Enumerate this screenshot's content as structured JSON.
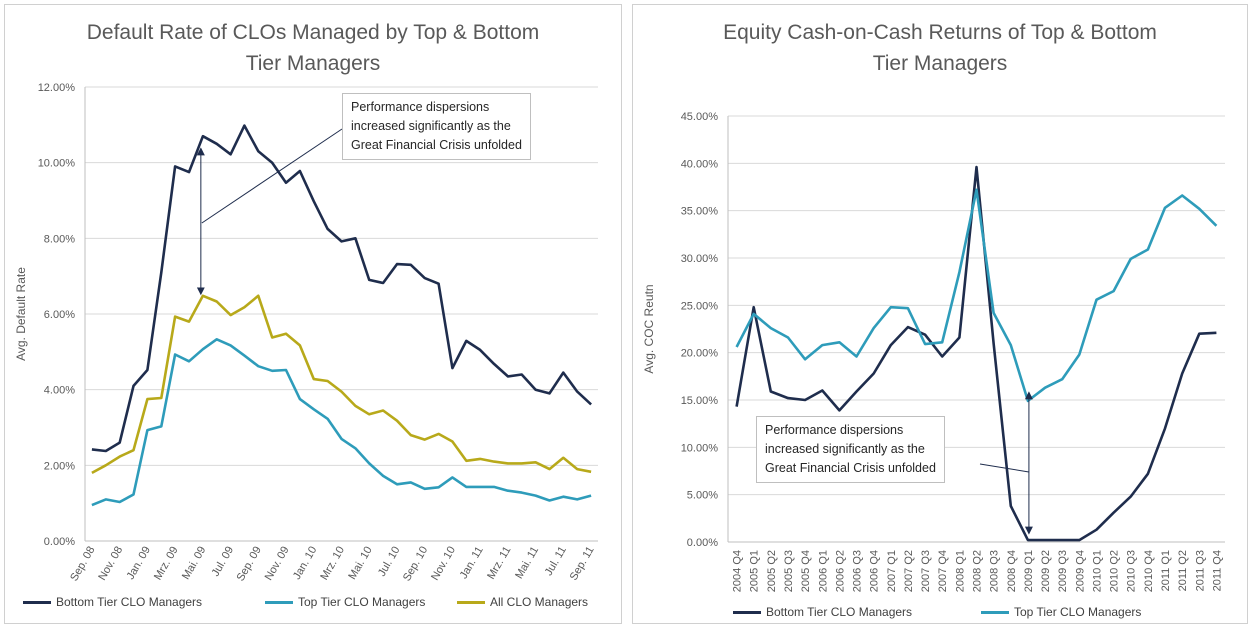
{
  "chart_data": [
    {
      "type": "line",
      "title_lines": [
        "Default Rate of CLOs Managed by Top & Bottom",
        "Tier Managers"
      ],
      "ylabel": "Avg. Default Rate",
      "xlabel": "",
      "ylim": [
        0,
        12
      ],
      "yticks": [
        0,
        2,
        4,
        6,
        8,
        10,
        12
      ],
      "ytick_labels": [
        "0.00%",
        "2.00%",
        "4.00%",
        "6.00%",
        "8.00%",
        "10.00%",
        "12.00%"
      ],
      "x_tick_labels": [
        "Sep. 08",
        "Nov. 08",
        "Jan. 09",
        "Mrz. 09",
        "Mai. 09",
        "Jul. 09",
        "Sep. 09",
        "Nov. 09",
        "Jan. 10",
        "Mrz. 10",
        "Mai. 10",
        "Jul. 10",
        "Sep. 10",
        "Nov. 10",
        "Jan. 11",
        "Mrz. 11",
        "Mai. 11",
        "Jul. 11",
        "Sep. 11"
      ],
      "gridlines": "horizontal",
      "legend_position": "bottom",
      "series": [
        {
          "name": "Bottom Tier CLO Managers",
          "color": "#1f2d4d",
          "values": [
            2.42,
            2.38,
            2.6,
            4.1,
            4.52,
            7.1,
            9.9,
            9.75,
            10.7,
            10.5,
            10.22,
            10.98,
            10.3,
            10.0,
            9.47,
            9.78,
            8.98,
            8.25,
            7.92,
            8.0,
            6.9,
            6.82,
            7.32,
            7.3,
            6.95,
            6.8,
            4.57,
            5.29,
            5.05,
            4.68,
            4.35,
            4.4,
            4.0,
            3.9,
            4.45,
            3.95,
            3.61
          ]
        },
        {
          "name": "Top Tier CLO Managers",
          "color": "#2e9cba",
          "values": [
            0.95,
            1.1,
            1.03,
            1.23,
            2.93,
            3.03,
            4.93,
            4.75,
            5.07,
            5.33,
            5.17,
            4.9,
            4.62,
            4.5,
            4.52,
            3.75,
            3.48,
            3.23,
            2.7,
            2.45,
            2.05,
            1.72,
            1.5,
            1.55,
            1.38,
            1.42,
            1.68,
            1.43,
            1.43,
            1.43,
            1.33,
            1.28,
            1.2,
            1.07,
            1.17,
            1.1,
            1.2
          ]
        },
        {
          "name": "All CLO Managers",
          "color": "#b8a91a",
          "values": [
            1.8,
            2.0,
            2.23,
            2.4,
            3.75,
            3.78,
            5.93,
            5.8,
            6.48,
            6.33,
            5.97,
            6.18,
            6.48,
            5.38,
            5.48,
            5.17,
            4.28,
            4.23,
            3.95,
            3.57,
            3.35,
            3.45,
            3.18,
            2.8,
            2.68,
            2.83,
            2.63,
            2.12,
            2.17,
            2.1,
            2.05,
            2.05,
            2.08,
            1.9,
            2.2,
            1.9,
            1.83
          ]
        }
      ],
      "annotation_lines": [
        "Performance dispersions",
        "increased significantly as the",
        "Great Financial Crisis unfolded"
      ]
    },
    {
      "type": "line",
      "title_lines": [
        "Equity Cash-on-Cash Returns of Top & Bottom",
        "Tier Managers"
      ],
      "ylabel": "Avg. COC Reutn",
      "xlabel": "",
      "ylim": [
        0,
        45
      ],
      "yticks": [
        0,
        5,
        10,
        15,
        20,
        25,
        30,
        35,
        40,
        45
      ],
      "ytick_labels": [
        "0.00%",
        "5.00%",
        "10.00%",
        "15.00%",
        "20.00%",
        "25.00%",
        "30.00%",
        "35.00%",
        "40.00%",
        "45.00%"
      ],
      "categories": [
        "2004 Q4",
        "2005 Q1",
        "2005 Q2",
        "2005 Q3",
        "2005 Q4",
        "2006 Q1",
        "2006 Q2",
        "2006 Q3",
        "2006 Q4",
        "2007 Q1",
        "2007 Q2",
        "2007 Q3",
        "2007 Q4",
        "2008 Q1",
        "2008 Q2",
        "2008 Q3",
        "2008 Q4",
        "2009 Q1",
        "2009 Q2",
        "2009 Q3",
        "2009 Q4",
        "2010 Q1",
        "2010 Q2",
        "2010 Q3",
        "2010 Q4",
        "2011 Q1",
        "2011 Q2",
        "2011 Q3",
        "2011 Q4"
      ],
      "gridlines": "horizontal",
      "legend_position": "bottom",
      "series": [
        {
          "name": "Bottom Tier CLO Managers",
          "color": "#1f2d4d",
          "values": [
            14.3,
            24.8,
            15.9,
            15.2,
            15.0,
            16.0,
            13.9,
            15.9,
            17.8,
            20.8,
            22.7,
            21.9,
            19.6,
            21.6,
            39.6,
            21.0,
            3.8,
            0.2,
            0.2,
            0.2,
            0.2,
            1.3,
            3.1,
            4.8,
            7.2,
            12.0,
            17.8,
            22.0,
            22.1
          ]
        },
        {
          "name": "Top Tier CLO Managers",
          "color": "#2e9cba",
          "values": [
            20.6,
            24.1,
            22.6,
            21.6,
            19.3,
            20.8,
            21.1,
            19.6,
            22.6,
            24.8,
            24.7,
            20.9,
            21.1,
            28.5,
            37.2,
            24.2,
            20.8,
            14.9,
            16.3,
            17.2,
            19.8,
            25.6,
            26.5,
            29.9,
            30.9,
            35.3,
            36.6,
            35.2,
            33.4
          ]
        }
      ],
      "annotation_lines": [
        "Performance dispersions",
        "increased significantly as the",
        "Great Financial Crisis unfolded"
      ]
    }
  ]
}
